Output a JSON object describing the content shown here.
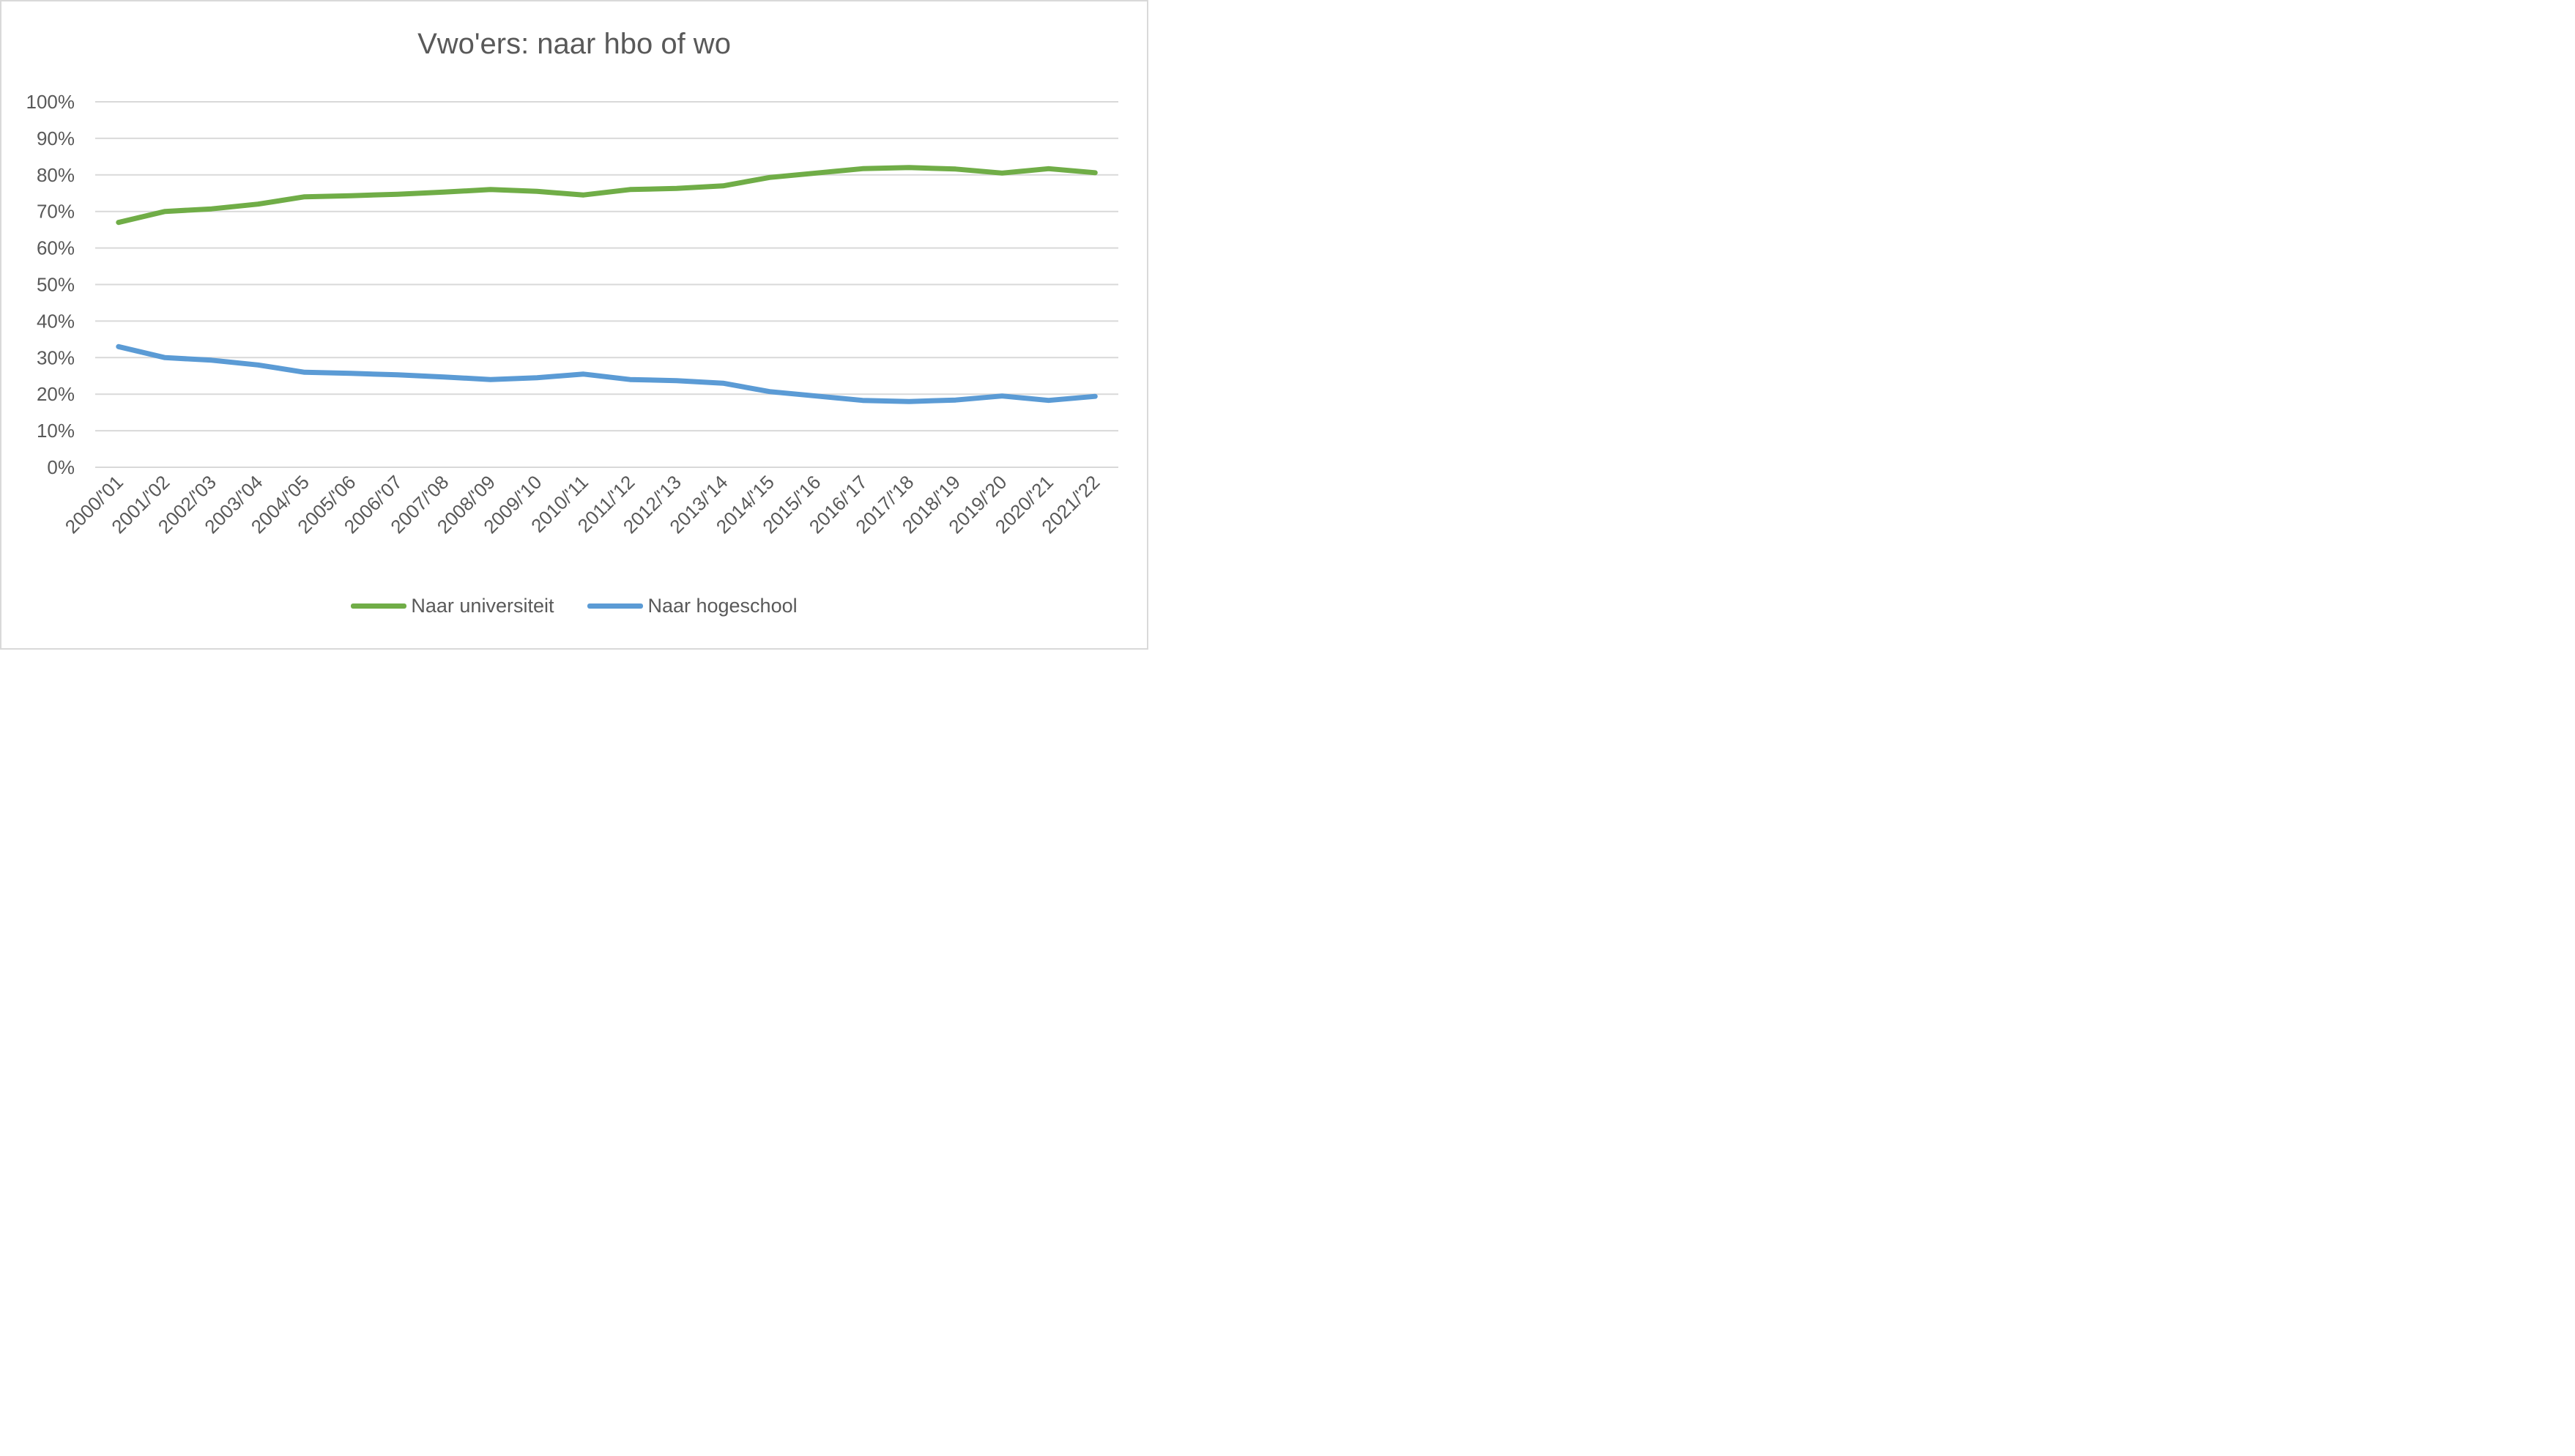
{
  "chart_data": {
    "type": "line",
    "title": "Vwo'ers: naar hbo of wo",
    "xlabel": "",
    "ylabel": "",
    "ylim": [
      0,
      100
    ],
    "yticks": [
      "0%",
      "10%",
      "20%",
      "30%",
      "40%",
      "50%",
      "60%",
      "70%",
      "80%",
      "90%",
      "100%"
    ],
    "grid": true,
    "legend_position": "bottom",
    "categories": [
      "2000/'01",
      "2001/'02",
      "2002/'03",
      "2003/'04",
      "2004/'05",
      "2005/'06",
      "2006/'07",
      "2007/'08",
      "2008/'09",
      "2009/'10",
      "2010/'11",
      "2011/'12",
      "2012/'13",
      "2013/'14",
      "2014/'15",
      "2015/'16",
      "2016/'17",
      "2017/'18",
      "2018/'19",
      "2019/'20",
      "2020/'21",
      "2021/'22"
    ],
    "series": [
      {
        "name": "Naar universiteit",
        "color": "#70ad47",
        "values": [
          67,
          70,
          70.7,
          72,
          74,
          74.3,
          74.7,
          75.3,
          76,
          75.5,
          74.5,
          76,
          76.3,
          77,
          79.3,
          80.5,
          81.7,
          82,
          81.6,
          80.5,
          81.7,
          80.6
        ]
      },
      {
        "name": "Naar hogeschool",
        "color": "#5b9bd5",
        "values": [
          33,
          30,
          29.3,
          28,
          26,
          25.7,
          25.3,
          24.7,
          24,
          24.5,
          25.5,
          24,
          23.7,
          23,
          20.7,
          19.5,
          18.3,
          18,
          18.4,
          19.5,
          18.3,
          19.4
        ]
      }
    ]
  }
}
